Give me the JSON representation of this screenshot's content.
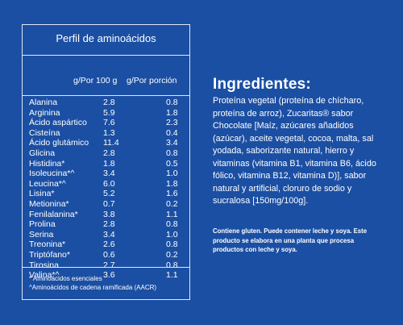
{
  "panel": {
    "title": "Perfil de aminoácidos",
    "col1_header": "g/Por 100 g",
    "col2_header": "g/Por porción",
    "rows": [
      {
        "name": "Alanina",
        "per100": "2.8",
        "portion": "0.8"
      },
      {
        "name": "Arginina",
        "per100": "5.9",
        "portion": "1.8"
      },
      {
        "name": "Ácido aspártico",
        "per100": "7.6",
        "portion": "2.3"
      },
      {
        "name": "Cisteína",
        "per100": "1.3",
        "portion": "0.4"
      },
      {
        "name": "Ácido glutámico",
        "per100": "11.4",
        "portion": "3.4"
      },
      {
        "name": "Glicina",
        "per100": "2.8",
        "portion": "0.8"
      },
      {
        "name": "Histidina*",
        "per100": "1.8",
        "portion": "0.5"
      },
      {
        "name": "Isoleucina*^",
        "per100": "3.4",
        "portion": "1.0"
      },
      {
        "name": "Leucina*^",
        "per100": "6.0",
        "portion": "1.8"
      },
      {
        "name": "Lisina*",
        "per100": "5.2",
        "portion": "1.6"
      },
      {
        "name": "Metionina*",
        "per100": "0.7",
        "portion": "0.2"
      },
      {
        "name": "Fenilalanina*",
        "per100": "3.8",
        "portion": "1.1"
      },
      {
        "name": "Prolina",
        "per100": "2.8",
        "portion": "0.8"
      },
      {
        "name": "Serina",
        "per100": "3.4",
        "portion": "1.0"
      },
      {
        "name": "Treonina*",
        "per100": "2.6",
        "portion": "0.8"
      },
      {
        "name": "Triptófano*",
        "per100": "0.6",
        "portion": "0.2"
      },
      {
        "name": "Tirosina",
        "per100": "2.7",
        "portion": "0.8"
      },
      {
        "name": "Valina*^",
        "per100": "3.6",
        "portion": "1.1"
      }
    ],
    "note1": "* Aminoácidos esenciales",
    "note2": "^Aminoácidos de cadena ramificada (AACR)"
  },
  "ingredients": {
    "title": "Ingredientes:",
    "text": "Proteína vegetal (proteína de chícharo, proteína de arroz), Zucaritas® sabor Chocolate [Maíz, azúcares añadidos (azúcar), aceite vegetal, cocoa, malta, sal yodada, saborizante natural, hierro y vitaminas (vitamina B1, vitamina B6, ácido fólico, vitamina B12, vitamina D)], sabor natural y artificial, cloruro de sodio y sucralosa [150mg/100g].",
    "allergen_note": "Contiene gluten. Puede contener leche y soya. Este producto se elabora en una planta que procesa productos con leche y soya."
  },
  "colors": {
    "background": "#1b4fa3",
    "border": "#dfe8f6",
    "text": "#ffffff"
  }
}
